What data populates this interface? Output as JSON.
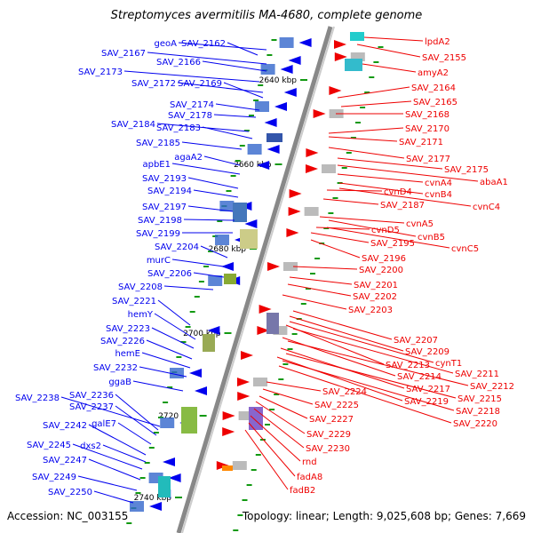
{
  "title": "Streptomyces avermitilis MA-4680, complete genome",
  "accession": "Accession: NC_003155",
  "topology": "Topology: linear; Length: 9,025,608 bp; Genes: 7,669",
  "colors": {
    "left_strand": "#0000ee",
    "right_strand": "#ee0000",
    "backbone": "#888888",
    "marker": "#119911"
  },
  "ticks": [
    {
      "label": "2640 kbp"
    },
    {
      "label": "2660 kbp"
    },
    {
      "label": "2680 kbp"
    },
    {
      "label": "2700 kbp"
    },
    {
      "label": "2720 kbp"
    },
    {
      "label": "2740 kbp"
    }
  ],
  "left_labels": [
    "geoA",
    "SAV_2162",
    "SAV_2167",
    "SAV_2166",
    "SAV_2173",
    "SAV_2172",
    "SAV_2169",
    "SAV_2174",
    "SAV_2178",
    "SAV_2184",
    "SAV_2183",
    "SAV_2185",
    "agaA2",
    "apbE1",
    "SAV_2193",
    "SAV_2194",
    "SAV_2197",
    "SAV_2198",
    "SAV_2199",
    "SAV_2204",
    "murC",
    "SAV_2206",
    "SAV_2208",
    "SAV_2221",
    "hemY",
    "SAV_2223",
    "SAV_2226",
    "hemE",
    "SAV_2232",
    "ggaB",
    "SAV_2238",
    "SAV_2236",
    "SAV_2237",
    "galE7",
    "SAV_2242",
    "dxs2",
    "SAV_2245",
    "SAV_2247",
    "SAV_2249",
    "SAV_2250"
  ],
  "right_labels": [
    "lpdA2",
    "SAV_2155",
    "amyA2",
    "SAV_2164",
    "SAV_2165",
    "SAV_2168",
    "SAV_2170",
    "SAV_2171",
    "SAV_2177",
    "SAV_2175",
    "abaA1",
    "cvnA4",
    "cvnD4",
    "cvnB4",
    "SAV_2187",
    "cvnC4",
    "cvnA5",
    "cvnD5",
    "cvnB5",
    "SAV_2195",
    "cvnC5",
    "SAV_2196",
    "SAV_2200",
    "SAV_2201",
    "SAV_2202",
    "SAV_2203",
    "SAV_2207",
    "SAV_2209",
    "cynT1",
    "SAV_2213",
    "SAV_2211",
    "SAV_2214",
    "SAV_2212",
    "SAV_2217",
    "SAV_2215",
    "SAV_2219",
    "SAV_2218",
    "SAV_2220",
    "SAV_2224",
    "SAV_2225",
    "SAV_2227",
    "SAV_2229",
    "SAV_2230",
    "rnd",
    "fadA8",
    "fadB2"
  ]
}
